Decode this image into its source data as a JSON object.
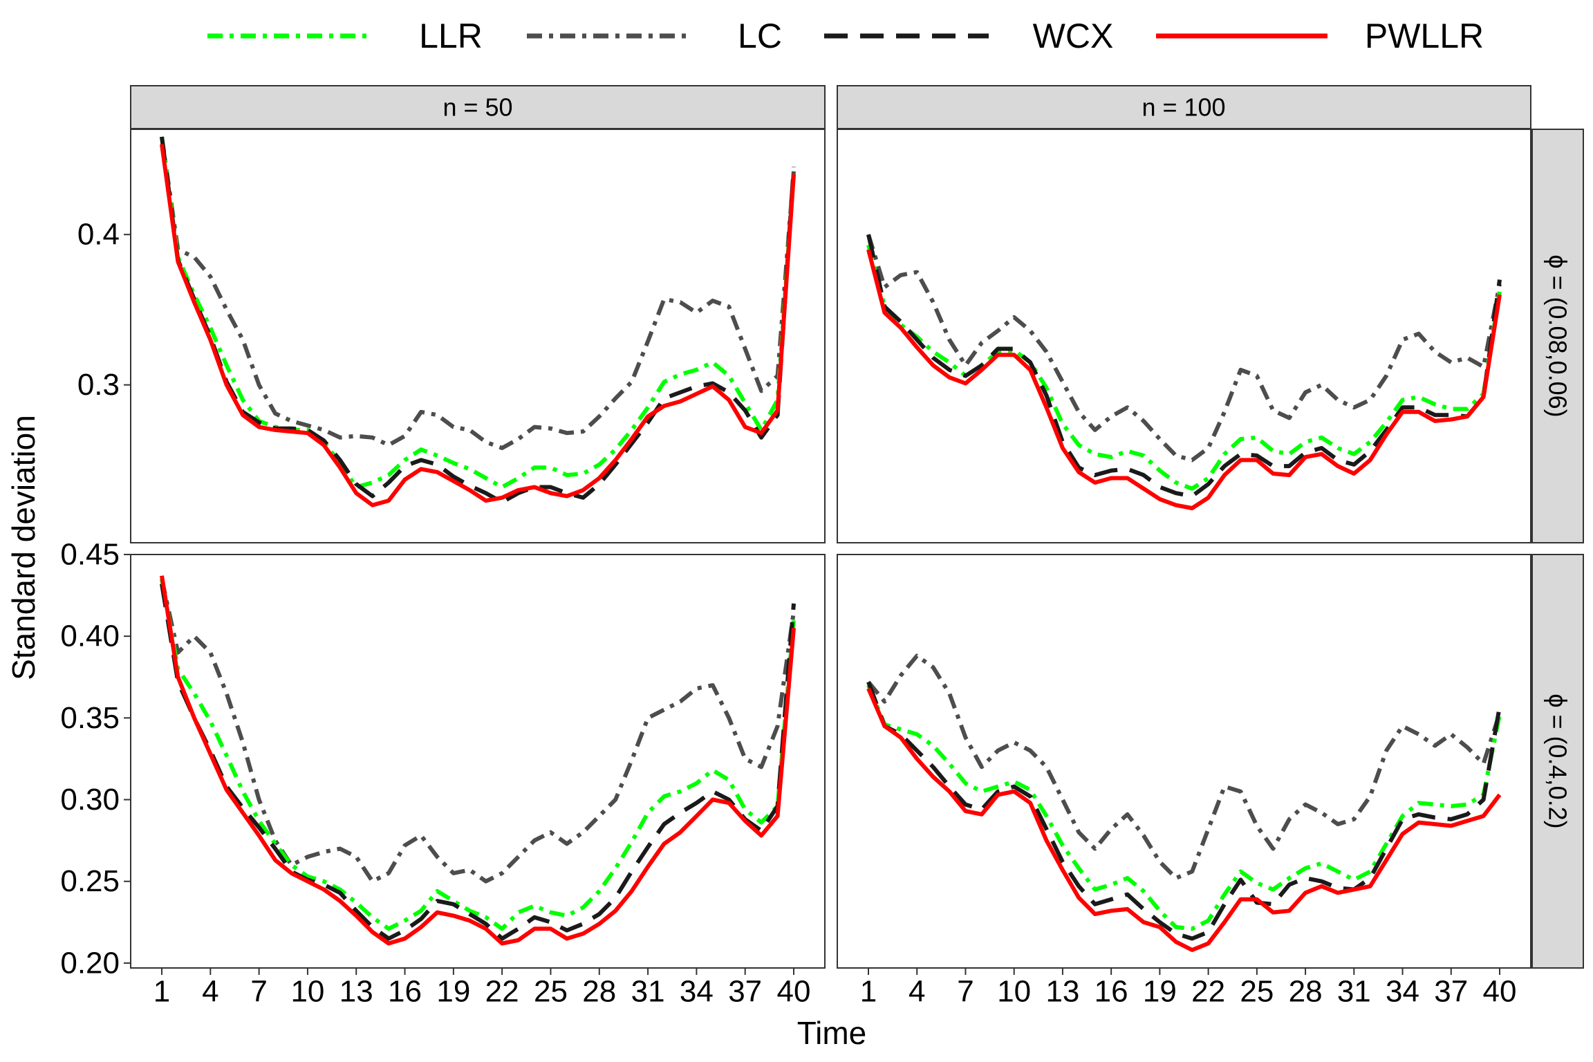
{
  "chart_data": {
    "type": "line",
    "facet_columns": [
      "n = 50",
      "n = 100"
    ],
    "facet_rows": [
      "ϕ = (0.08,0.06)",
      "ϕ = (0.4,0.2)"
    ],
    "x_ticks": [
      1,
      4,
      7,
      10,
      13,
      16,
      19,
      22,
      25,
      28,
      31,
      34,
      37,
      40
    ],
    "x_tick_labels": [
      "1",
      "4",
      "7",
      "10",
      "13",
      "16",
      "19",
      "22",
      "25",
      "28",
      "31",
      "34",
      "37",
      "40"
    ],
    "xlabel": "Time",
    "ylabel": "Standard deviation",
    "xlim": [
      1,
      40
    ],
    "legend": {
      "position": "top",
      "entries": [
        {
          "name": "LLR",
          "color": "#00ff00",
          "dash": "dotdash"
        },
        {
          "name": "LC",
          "color": "#4d4d4d",
          "dash": "dotdash"
        },
        {
          "name": "WCX",
          "color": "#1a1a1a",
          "dash": "dashed"
        },
        {
          "name": "PWLLR",
          "color": "#ff0000",
          "dash": "solid"
        }
      ]
    },
    "panels": [
      {
        "column": "n = 50",
        "row": "ϕ = (0.08,0.06)",
        "ylim": [
          0.195,
          0.47
        ],
        "y_ticks": [
          0.3,
          0.4
        ],
        "y_tick_labels": [
          "0.3",
          "0.4"
        ],
        "series": [
          {
            "name": "LLR",
            "values": [
              0.465,
              0.385,
              0.36,
              0.338,
              0.313,
              0.29,
              0.276,
              0.272,
              0.27,
              0.27,
              0.262,
              0.248,
              0.232,
              0.235,
              0.24,
              0.25,
              0.257,
              0.253,
              0.248,
              0.244,
              0.238,
              0.232,
              0.238,
              0.245,
              0.245,
              0.24,
              0.241,
              0.247,
              0.257,
              0.27,
              0.285,
              0.302,
              0.307,
              0.31,
              0.315,
              0.306,
              0.288,
              0.27,
              0.29,
              0.44
            ]
          },
          {
            "name": "LC",
            "values": [
              0.465,
              0.39,
              0.385,
              0.372,
              0.35,
              0.33,
              0.3,
              0.281,
              0.276,
              0.273,
              0.27,
              0.265,
              0.266,
              0.265,
              0.26,
              0.266,
              0.282,
              0.28,
              0.272,
              0.27,
              0.262,
              0.258,
              0.264,
              0.272,
              0.271,
              0.268,
              0.269,
              0.279,
              0.291,
              0.302,
              0.329,
              0.357,
              0.355,
              0.348,
              0.356,
              0.352,
              0.324,
              0.296,
              0.306,
              0.442
            ]
          },
          {
            "name": "WCX",
            "values": [
              0.465,
              0.383,
              0.357,
              0.332,
              0.302,
              0.282,
              0.275,
              0.271,
              0.271,
              0.27,
              0.263,
              0.25,
              0.234,
              0.226,
              0.235,
              0.246,
              0.25,
              0.247,
              0.239,
              0.233,
              0.228,
              0.222,
              0.228,
              0.232,
              0.232,
              0.228,
              0.225,
              0.234,
              0.247,
              0.261,
              0.275,
              0.291,
              0.295,
              0.299,
              0.301,
              0.295,
              0.283,
              0.265,
              0.28,
              0.445
            ]
          },
          {
            "name": "PWLLR",
            "values": [
              0.46,
              0.382,
              0.355,
              0.33,
              0.3,
              0.28,
              0.272,
              0.27,
              0.269,
              0.268,
              0.26,
              0.245,
              0.228,
              0.22,
              0.223,
              0.237,
              0.244,
              0.242,
              0.236,
              0.23,
              0.223,
              0.225,
              0.23,
              0.232,
              0.228,
              0.226,
              0.23,
              0.238,
              0.25,
              0.264,
              0.279,
              0.286,
              0.289,
              0.294,
              0.299,
              0.29,
              0.272,
              0.268,
              0.283,
              0.44
            ]
          }
        ]
      },
      {
        "column": "n = 100",
        "row": "ϕ = (0.08,0.06)",
        "ylim": [
          0.195,
          0.47
        ],
        "y_ticks": [
          0.3,
          0.4
        ],
        "y_tick_labels": [
          "0.3",
          "0.4"
        ],
        "series": [
          {
            "name": "LLR",
            "values": [
              0.393,
              0.352,
              0.34,
              0.332,
              0.322,
              0.315,
              0.306,
              0.313,
              0.322,
              0.323,
              0.315,
              0.298,
              0.274,
              0.26,
              0.254,
              0.252,
              0.256,
              0.253,
              0.243,
              0.235,
              0.231,
              0.238,
              0.254,
              0.264,
              0.265,
              0.256,
              0.254,
              0.262,
              0.265,
              0.258,
              0.254,
              0.262,
              0.275,
              0.29,
              0.292,
              0.287,
              0.284,
              0.284,
              0.294,
              0.362
            ]
          },
          {
            "name": "LC",
            "values": [
              0.4,
              0.365,
              0.373,
              0.375,
              0.355,
              0.33,
              0.313,
              0.328,
              0.336,
              0.345,
              0.336,
              0.322,
              0.302,
              0.282,
              0.27,
              0.279,
              0.285,
              0.276,
              0.264,
              0.253,
              0.25,
              0.258,
              0.282,
              0.31,
              0.306,
              0.283,
              0.278,
              0.295,
              0.3,
              0.29,
              0.285,
              0.29,
              0.306,
              0.33,
              0.334,
              0.322,
              0.315,
              0.318,
              0.312,
              0.367
            ]
          },
          {
            "name": "WCX",
            "values": [
              0.4,
              0.352,
              0.342,
              0.33,
              0.318,
              0.31,
              0.306,
              0.313,
              0.324,
              0.324,
              0.315,
              0.293,
              0.262,
              0.245,
              0.24,
              0.243,
              0.244,
              0.24,
              0.232,
              0.228,
              0.226,
              0.234,
              0.246,
              0.254,
              0.253,
              0.246,
              0.246,
              0.255,
              0.258,
              0.25,
              0.247,
              0.256,
              0.27,
              0.285,
              0.285,
              0.28,
              0.28,
              0.279,
              0.292,
              0.37
            ]
          },
          {
            "name": "PWLLR",
            "values": [
              0.39,
              0.348,
              0.338,
              0.325,
              0.313,
              0.305,
              0.301,
              0.31,
              0.32,
              0.32,
              0.31,
              0.285,
              0.258,
              0.242,
              0.235,
              0.238,
              0.238,
              0.231,
              0.224,
              0.22,
              0.218,
              0.225,
              0.24,
              0.25,
              0.25,
              0.241,
              0.24,
              0.252,
              0.254,
              0.246,
              0.241,
              0.25,
              0.267,
              0.282,
              0.282,
              0.276,
              0.277,
              0.279,
              0.292,
              0.36
            ]
          }
        ]
      },
      {
        "column": "n = 50",
        "row": "ϕ = (0.4,0.2)",
        "ylim": [
          0.197,
          0.45
        ],
        "y_ticks": [
          0.2,
          0.25,
          0.3,
          0.35,
          0.4,
          0.45
        ],
        "y_tick_labels": [
          "0.20",
          "0.25",
          "0.30",
          "0.35",
          "0.40",
          "0.45"
        ],
        "series": [
          {
            "name": "LLR",
            "values": [
              0.435,
              0.38,
              0.365,
              0.348,
              0.327,
              0.305,
              0.287,
              0.273,
              0.26,
              0.253,
              0.25,
              0.245,
              0.237,
              0.228,
              0.221,
              0.226,
              0.232,
              0.244,
              0.238,
              0.232,
              0.228,
              0.221,
              0.231,
              0.235,
              0.231,
              0.229,
              0.234,
              0.244,
              0.258,
              0.274,
              0.292,
              0.302,
              0.305,
              0.31,
              0.318,
              0.312,
              0.294,
              0.286,
              0.296,
              0.41
            ]
          },
          {
            "name": "LC",
            "values": [
              0.435,
              0.39,
              0.4,
              0.39,
              0.365,
              0.335,
              0.3,
              0.275,
              0.26,
              0.265,
              0.268,
              0.27,
              0.265,
              0.25,
              0.255,
              0.272,
              0.278,
              0.265,
              0.255,
              0.257,
              0.25,
              0.255,
              0.265,
              0.275,
              0.28,
              0.273,
              0.28,
              0.29,
              0.3,
              0.324,
              0.35,
              0.355,
              0.36,
              0.368,
              0.37,
              0.35,
              0.325,
              0.32,
              0.345,
              0.415
            ]
          },
          {
            "name": "WCX",
            "values": [
              0.432,
              0.372,
              0.35,
              0.33,
              0.308,
              0.295,
              0.283,
              0.27,
              0.256,
              0.251,
              0.248,
              0.243,
              0.232,
              0.222,
              0.215,
              0.22,
              0.227,
              0.238,
              0.236,
              0.23,
              0.224,
              0.215,
              0.221,
              0.228,
              0.225,
              0.22,
              0.224,
              0.23,
              0.24,
              0.256,
              0.271,
              0.285,
              0.292,
              0.298,
              0.305,
              0.3,
              0.288,
              0.281,
              0.296,
              0.42
            ]
          },
          {
            "name": "PWLLR",
            "values": [
              0.437,
              0.375,
              0.35,
              0.328,
              0.306,
              0.292,
              0.278,
              0.263,
              0.255,
              0.25,
              0.245,
              0.238,
              0.229,
              0.219,
              0.212,
              0.215,
              0.222,
              0.231,
              0.229,
              0.226,
              0.221,
              0.212,
              0.214,
              0.221,
              0.221,
              0.215,
              0.218,
              0.224,
              0.232,
              0.244,
              0.259,
              0.273,
              0.28,
              0.29,
              0.3,
              0.298,
              0.287,
              0.278,
              0.29,
              0.405
            ]
          }
        ]
      },
      {
        "column": "n = 100",
        "row": "ϕ = (0.4,0.2)",
        "ylim": [
          0.197,
          0.45
        ],
        "y_ticks": [
          0.2,
          0.25,
          0.3,
          0.35,
          0.4,
          0.45
        ],
        "y_tick_labels": [
          "0.20",
          "0.25",
          "0.30",
          "0.35",
          "0.40",
          "0.45"
        ],
        "series": [
          {
            "name": "LLR",
            "values": [
              0.37,
              0.346,
              0.343,
              0.34,
              0.333,
              0.322,
              0.31,
              0.305,
              0.308,
              0.311,
              0.306,
              0.29,
              0.272,
              0.258,
              0.245,
              0.248,
              0.252,
              0.244,
              0.232,
              0.222,
              0.221,
              0.226,
              0.242,
              0.256,
              0.249,
              0.245,
              0.252,
              0.258,
              0.261,
              0.256,
              0.251,
              0.256,
              0.273,
              0.29,
              0.298,
              0.297,
              0.296,
              0.297,
              0.303,
              0.352
            ]
          },
          {
            "name": "LC",
            "values": [
              0.372,
              0.36,
              0.376,
              0.388,
              0.381,
              0.365,
              0.338,
              0.32,
              0.33,
              0.335,
              0.33,
              0.32,
              0.3,
              0.28,
              0.27,
              0.282,
              0.291,
              0.278,
              0.262,
              0.252,
              0.256,
              0.282,
              0.308,
              0.305,
              0.284,
              0.27,
              0.288,
              0.297,
              0.292,
              0.285,
              0.288,
              0.302,
              0.33,
              0.345,
              0.34,
              0.333,
              0.34,
              0.332,
              0.322,
              0.353
            ]
          },
          {
            "name": "WCX",
            "values": [
              0.372,
              0.345,
              0.34,
              0.33,
              0.32,
              0.308,
              0.297,
              0.294,
              0.305,
              0.308,
              0.302,
              0.282,
              0.262,
              0.247,
              0.236,
              0.239,
              0.242,
              0.233,
              0.225,
              0.218,
              0.215,
              0.219,
              0.236,
              0.251,
              0.237,
              0.236,
              0.248,
              0.252,
              0.25,
              0.246,
              0.245,
              0.252,
              0.27,
              0.288,
              0.291,
              0.289,
              0.288,
              0.291,
              0.3,
              0.357
            ]
          },
          {
            "name": "PWLLR",
            "values": [
              0.368,
              0.345,
              0.338,
              0.325,
              0.314,
              0.305,
              0.293,
              0.291,
              0.303,
              0.305,
              0.298,
              0.275,
              0.257,
              0.24,
              0.23,
              0.232,
              0.233,
              0.225,
              0.222,
              0.213,
              0.208,
              0.212,
              0.225,
              0.239,
              0.239,
              0.231,
              0.232,
              0.243,
              0.247,
              0.243,
              0.245,
              0.247,
              0.263,
              0.279,
              0.286,
              0.285,
              0.284,
              0.287,
              0.29,
              0.303
            ]
          }
        ]
      }
    ]
  }
}
